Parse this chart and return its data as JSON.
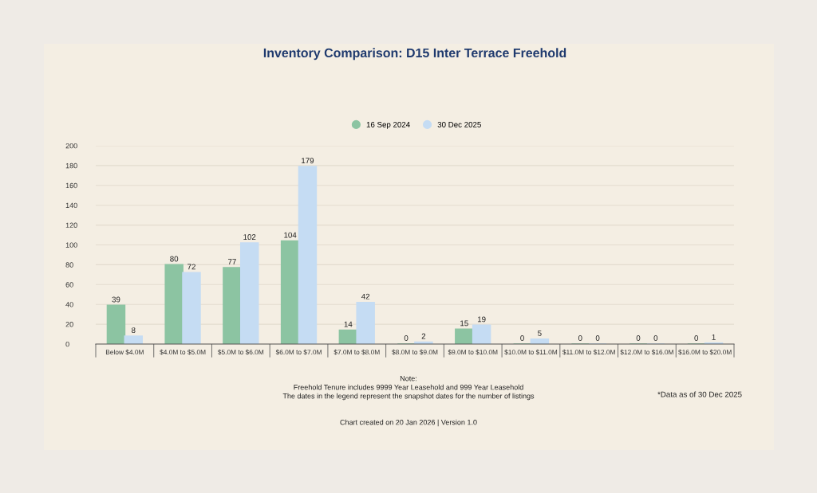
{
  "chart_data": {
    "type": "bar",
    "title": "Inventory Comparison: D15 Inter Terrace Freehold",
    "categories": [
      "Below $4.0M",
      "$4.0M to $5.0M",
      "$5.0M to $6.0M",
      "$6.0M to $7.0M",
      "$7.0M to $8.0M",
      "$8.0M to $9.0M",
      "$9.0M to $10.0M",
      "$10.0M to $11.0M",
      "$11.0M to $12.0M",
      "$12.0M to $16.0M",
      "$16.0M to $20.0M"
    ],
    "series": [
      {
        "name": "16 Sep 2024",
        "color": "#8cc4a2",
        "values": [
          39,
          80,
          77,
          104,
          14,
          0,
          15,
          0,
          0,
          0,
          0
        ]
      },
      {
        "name": "30 Dec 2025",
        "color": "#c5dcf3",
        "values": [
          8,
          72,
          102,
          179,
          42,
          2,
          19,
          5,
          0,
          0,
          1
        ]
      }
    ],
    "ylim": [
      0,
      200
    ],
    "yticks": [
      0,
      20,
      40,
      60,
      80,
      100,
      120,
      140,
      160,
      180,
      200
    ],
    "grid": "y",
    "legend": "top",
    "data_labels": true,
    "annotations": [
      "Note:",
      "Freehold Tenure includes 9999 Year Leasehold and 999 Year Leasehold",
      "The dates in the legend represent the snapshot dates for the number of listings",
      "*Data as of 30 Dec 2025",
      "Chart created on 20 Jan 2026 | Version 1.0"
    ]
  }
}
